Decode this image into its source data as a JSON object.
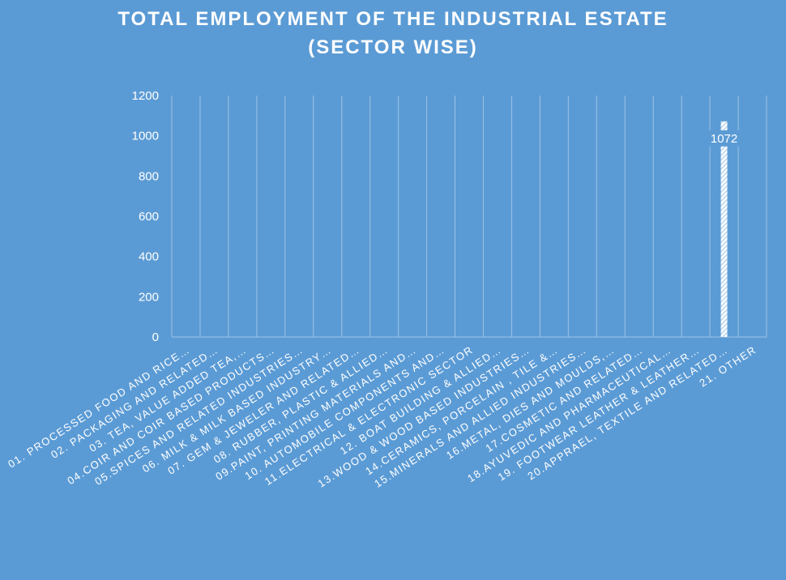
{
  "title_lines": [
    "TOTAL EMPLOYMENT OF THE INDUSTRIAL ESTATE",
    "(SECTOR WISE)"
  ],
  "colors": {
    "background": "#5b9bd5",
    "grid": "#9dc3e6",
    "bar_stripe_a": "#ffffff",
    "bar_stripe_b": "#bdd7ee",
    "text": "#ffffff",
    "label_box": "#5b9bd5"
  },
  "chart_data": {
    "type": "bar",
    "title": "TOTAL EMPLOYMENT OF THE INDUSTRIAL ESTATE (SECTOR WISE)",
    "categories": [
      "01. PROCESSED FOOD AND RICE…",
      "02. PACKAGING AND RELATED…",
      "03. TEA, VALUE ADDED TEA,…",
      "04.COIR AND COIR BASED PRODUCTS…",
      "05.SPICES AND RELATED INDUSTRIES…",
      "06. MILK & MILK BASED INDUSTRY…",
      "07. GEM & JEWELER AND RELATED…",
      "08. RUBBER, PLASTIC & ALLIED…",
      "09.PAINT, PRINTING MATERIALS AND…",
      "10. AUTOMOBILE COMPONENTS AND…",
      "11.ELECTRICAL & ELECTRONIC SECTOR",
      "12. BOAT BUILDING & ALLIED…",
      "13.WOOD & WOOD BASED INDUSTRIES…",
      "14.CERAMICS, PORCELAIN , TILE &…",
      "15.MINERALS AND ALLIED INDUSTRIES…",
      "16.METAL, DIES AND MOULDS,…",
      "17.COSMETIC AND RELATED…",
      "18.AYUVEDIC AND PHARMACEUTICAL…",
      "19. FOOTWEAR LEATHER & LEATHER…",
      "20.APPRAEL, TEXTILE AND RELATED…",
      "21. OTHER"
    ],
    "values": [
      0,
      0,
      0,
      0,
      0,
      0,
      0,
      0,
      0,
      0,
      0,
      0,
      0,
      0,
      0,
      0,
      0,
      0,
      0,
      1072,
      0
    ],
    "data_labels": [
      "",
      "",
      "",
      "",
      "",
      "",
      "",
      "",
      "",
      "",
      "",
      "",
      "",
      "",
      "",
      "",
      "",
      "",
      "",
      "1072",
      ""
    ],
    "yticks": [
      0,
      200,
      400,
      600,
      800,
      1000,
      1200
    ],
    "ylim": [
      0,
      1200
    ],
    "xlabel": "",
    "ylabel": "",
    "grid": "vertical",
    "legend": "none"
  }
}
